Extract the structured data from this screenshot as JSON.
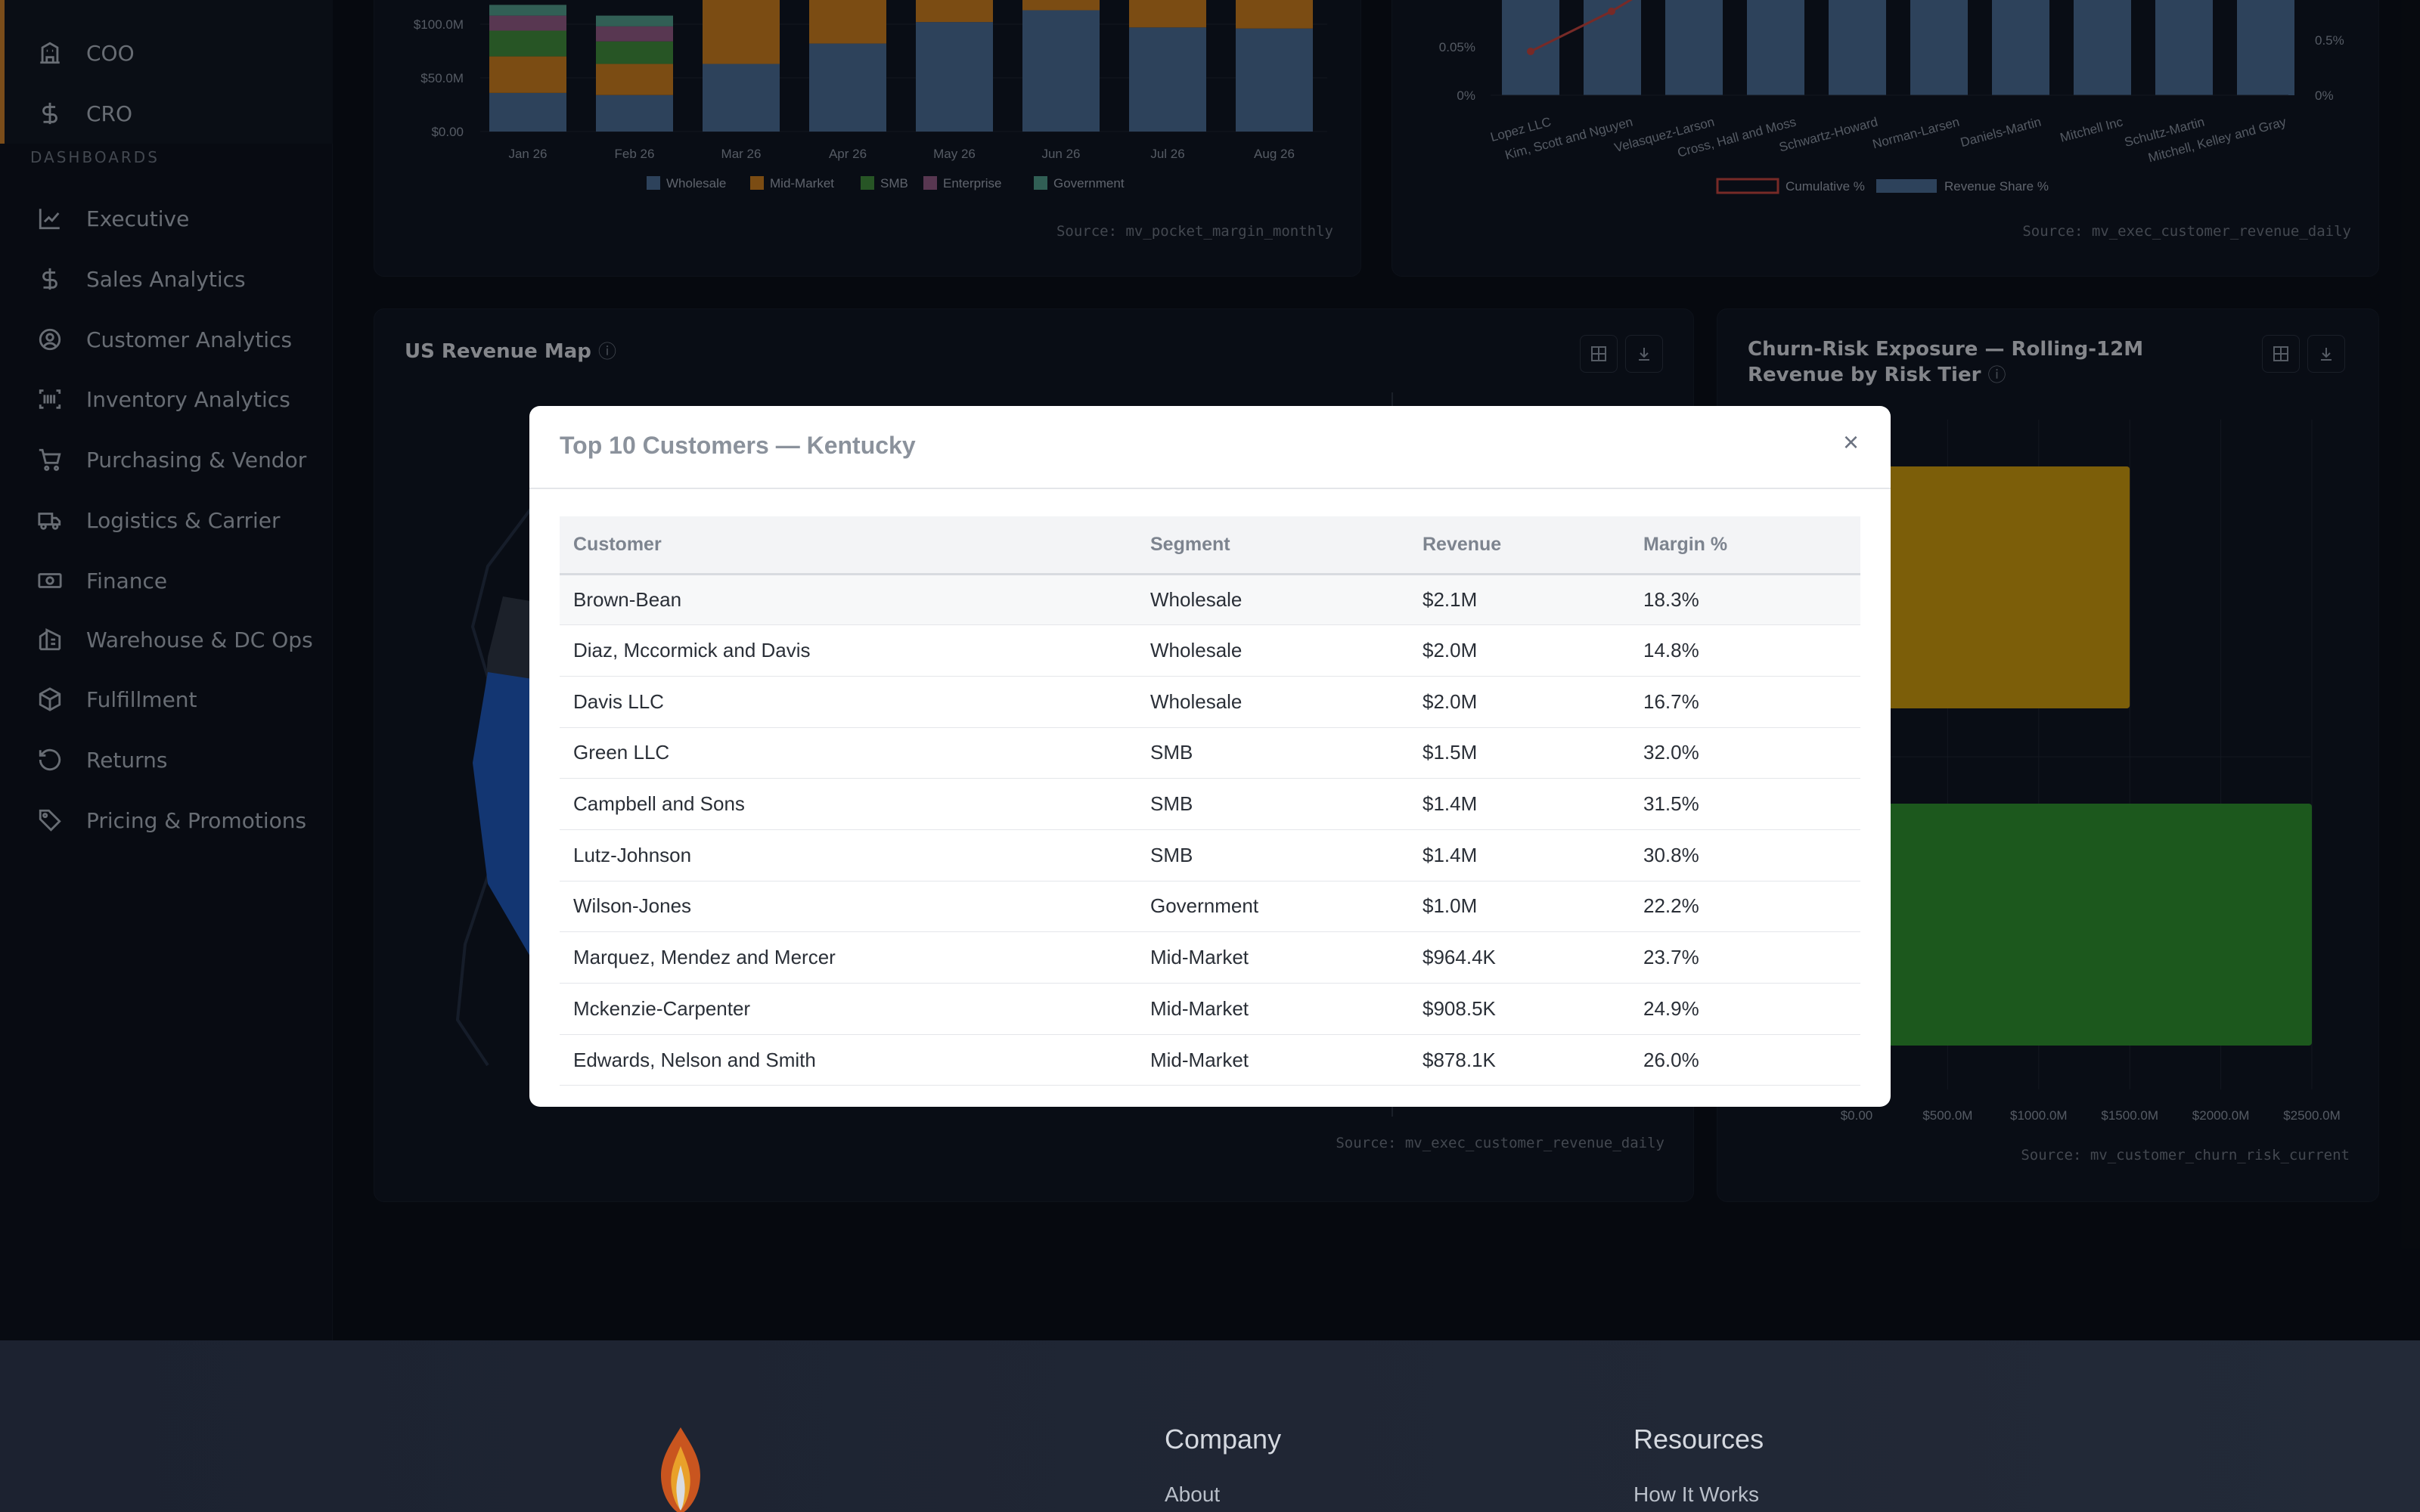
{
  "sidebar": {
    "roles": [
      {
        "label": "COO",
        "icon": "building-icon"
      },
      {
        "label": "CRO",
        "icon": "dollar-icon"
      }
    ],
    "section_label": "DASHBOARDS",
    "items": [
      {
        "label": "Executive",
        "icon": "trend-icon"
      },
      {
        "label": "Sales Analytics",
        "icon": "dollar-icon"
      },
      {
        "label": "Customer Analytics",
        "icon": "user-circle-icon"
      },
      {
        "label": "Inventory Analytics",
        "icon": "barcode-icon"
      },
      {
        "label": "Purchasing & Vendor",
        "icon": "cart-icon"
      },
      {
        "label": "Logistics & Carrier",
        "icon": "truck-icon"
      },
      {
        "label": "Finance",
        "icon": "cash-icon"
      },
      {
        "label": "Warehouse & DC Ops",
        "icon": "warehouse-icon"
      },
      {
        "label": "Fulfillment",
        "icon": "package-icon"
      },
      {
        "label": "Returns",
        "icon": "return-icon"
      },
      {
        "label": "Pricing & Promotions",
        "icon": "tag-icon"
      }
    ]
  },
  "pocket_chart": {
    "source": "Source: mv_pocket_margin_monthly",
    "chart_data": {
      "type": "bar",
      "stacked": true,
      "categories": [
        "Jan 26",
        "Feb 26",
        "Mar 26",
        "Apr 26",
        "May 26",
        "Jun 26",
        "Jul 26",
        "Aug 26"
      ],
      "yticks": [
        "$0.00",
        "$50.0M",
        "$100.0M"
      ],
      "legend": [
        "Wholesale",
        "Mid-Market",
        "SMB",
        "Enterprise",
        "Government"
      ],
      "colors": [
        "#4a6b93",
        "#c77b1f",
        "#3f8a3c",
        "#8e5a84",
        "#4f9a8a"
      ]
    }
  },
  "pareto_chart": {
    "source": "Source: mv_exec_customer_revenue_daily",
    "chart_data": {
      "type": "bar",
      "categories": [
        "Lopez LLC",
        "Kim, Scott and Nguyen",
        "Velasquez-Larson",
        "Cross, Hall and Moss",
        "Schwartz-Howard",
        "Norman-Larsen",
        "Daniels-Martin",
        "Mitchell Inc",
        "Schultz-Martin",
        "Mitchell, Kelley and Gray"
      ],
      "left_yticks": [
        "0%",
        "0.05%"
      ],
      "right_yticks": [
        "0%",
        "0.5%"
      ],
      "legend": [
        "Cumulative %",
        "Revenue Share %"
      ],
      "colors": {
        "bar": "#4a6b93",
        "line": "#c0453f"
      }
    }
  },
  "map_card": {
    "title": "US Revenue Map",
    "source": "Source: mv_exec_customer_revenue_daily"
  },
  "churn_card": {
    "title": "Churn-Risk Exposure — Rolling-12M Revenue by Risk Tier",
    "source": "Source: mv_customer_churn_risk_current",
    "chart_data": {
      "type": "bar",
      "orientation": "horizontal",
      "xticks": [
        "$0.00",
        "$500.0M",
        "$1000.0M",
        "$1500.0M",
        "$2000.0M",
        "$2500.0M"
      ],
      "values": [
        1500,
        2500
      ],
      "colors": [
        "#c9980f",
        "#2e8f2f"
      ]
    }
  },
  "modal": {
    "title": "Top 10 Customers — Kentucky",
    "close": "×",
    "columns": [
      "Customer",
      "Segment",
      "Revenue",
      "Margin %"
    ],
    "rows": [
      [
        "Brown-Bean",
        "Wholesale",
        "$2.1M",
        "18.3%"
      ],
      [
        "Diaz, Mccormick and Davis",
        "Wholesale",
        "$2.0M",
        "14.8%"
      ],
      [
        "Davis LLC",
        "Wholesale",
        "$2.0M",
        "16.7%"
      ],
      [
        "Green LLC",
        "SMB",
        "$1.5M",
        "32.0%"
      ],
      [
        "Campbell and Sons",
        "SMB",
        "$1.4M",
        "31.5%"
      ],
      [
        "Lutz-Johnson",
        "SMB",
        "$1.4M",
        "30.8%"
      ],
      [
        "Wilson-Jones",
        "Government",
        "$1.0M",
        "22.2%"
      ],
      [
        "Marquez, Mendez and Mercer",
        "Mid-Market",
        "$964.4K",
        "23.7%"
      ],
      [
        "Mckenzie-Carpenter",
        "Mid-Market",
        "$908.5K",
        "24.9%"
      ],
      [
        "Edwards, Nelson and Smith",
        "Mid-Market",
        "$878.1K",
        "26.0%"
      ]
    ]
  },
  "footer": {
    "company": {
      "heading": "Company",
      "links": [
        "About"
      ]
    },
    "resources": {
      "heading": "Resources",
      "links": [
        "How It Works"
      ]
    }
  }
}
